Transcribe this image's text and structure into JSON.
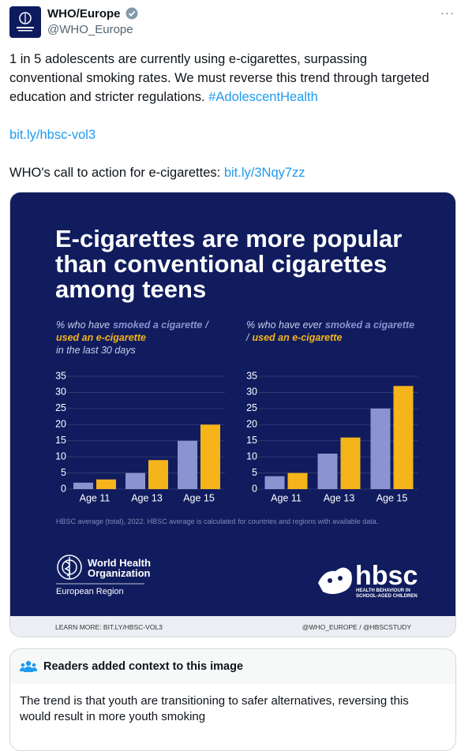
{
  "tweet": {
    "author_name": "WHO/Europe",
    "author_handle": "@WHO_Europe",
    "more_menu": "···",
    "body_lines": [
      "1 in 5 adolescents are currently using e-cigarettes, surpassing",
      "conventional smoking rates. We must reverse this trend through targeted",
      "education and stricter regulations."
    ],
    "hashtag": "#AdolescentHealth",
    "link_1": "bit.ly/hbsc-vol3",
    "cta_text": "WHO's call to action for e-cigarettes:",
    "cta_link": "bit.ly/3Nqy7zz"
  },
  "infographic": {
    "title_lines": [
      "E-cigarettes are more popular",
      "than conventional cigarettes",
      "among teens"
    ],
    "footnote": "HBSC average (total), 2022. HBSC average is calculated for countries and regions with available data.",
    "who_logo_lines": [
      "World Health",
      "Organization"
    ],
    "who_region": "European Region",
    "hbsc_logo": "hbsc",
    "hbsc_tagline_lines": [
      "HEALTH BEHAVIOUR IN",
      "SCHOOL-AGED CHILDREN"
    ],
    "footer_left": "LEARN MORE: BIT.LY/HBSC-VOL3",
    "footer_right": "@WHO_EUROPE / @HBSCSTUDY"
  },
  "chart_data": [
    {
      "type": "bar",
      "subtitle_prefix": "% who have",
      "subtitle_separator": "/",
      "subtitle_suffix": "in the last 30 days",
      "categories": [
        "Age 11",
        "Age 13",
        "Age 15"
      ],
      "series": [
        {
          "name": "smoked  a cigarette",
          "color": "#8b93d0",
          "values": [
            2,
            5,
            15
          ]
        },
        {
          "name": "used an e-cigarette",
          "color": "#f5b41a",
          "values": [
            3,
            9,
            20
          ]
        }
      ],
      "ylim": [
        0,
        35
      ],
      "yticks": [
        0,
        5,
        10,
        15,
        20,
        25,
        30,
        35
      ],
      "grid": true
    },
    {
      "type": "bar",
      "subtitle_prefix": "% who have ever",
      "subtitle_separator": "/",
      "categories": [
        "Age 11",
        "Age 13",
        "Age 15"
      ],
      "series": [
        {
          "name": "smoked a cigarette",
          "color": "#8b93d0",
          "values": [
            4,
            11,
            25
          ]
        },
        {
          "name": "used an e-cigarette",
          "color": "#f5b41a",
          "values": [
            5,
            16,
            32
          ]
        }
      ],
      "ylim": [
        0,
        35
      ],
      "yticks": [
        0,
        5,
        10,
        15,
        20,
        25,
        30,
        35
      ],
      "grid": true
    }
  ],
  "context": {
    "title": "Readers added context to this image",
    "text": "The trend is that youth are transitioning to safer alternatives, reversing this would result in more youth smoking"
  }
}
